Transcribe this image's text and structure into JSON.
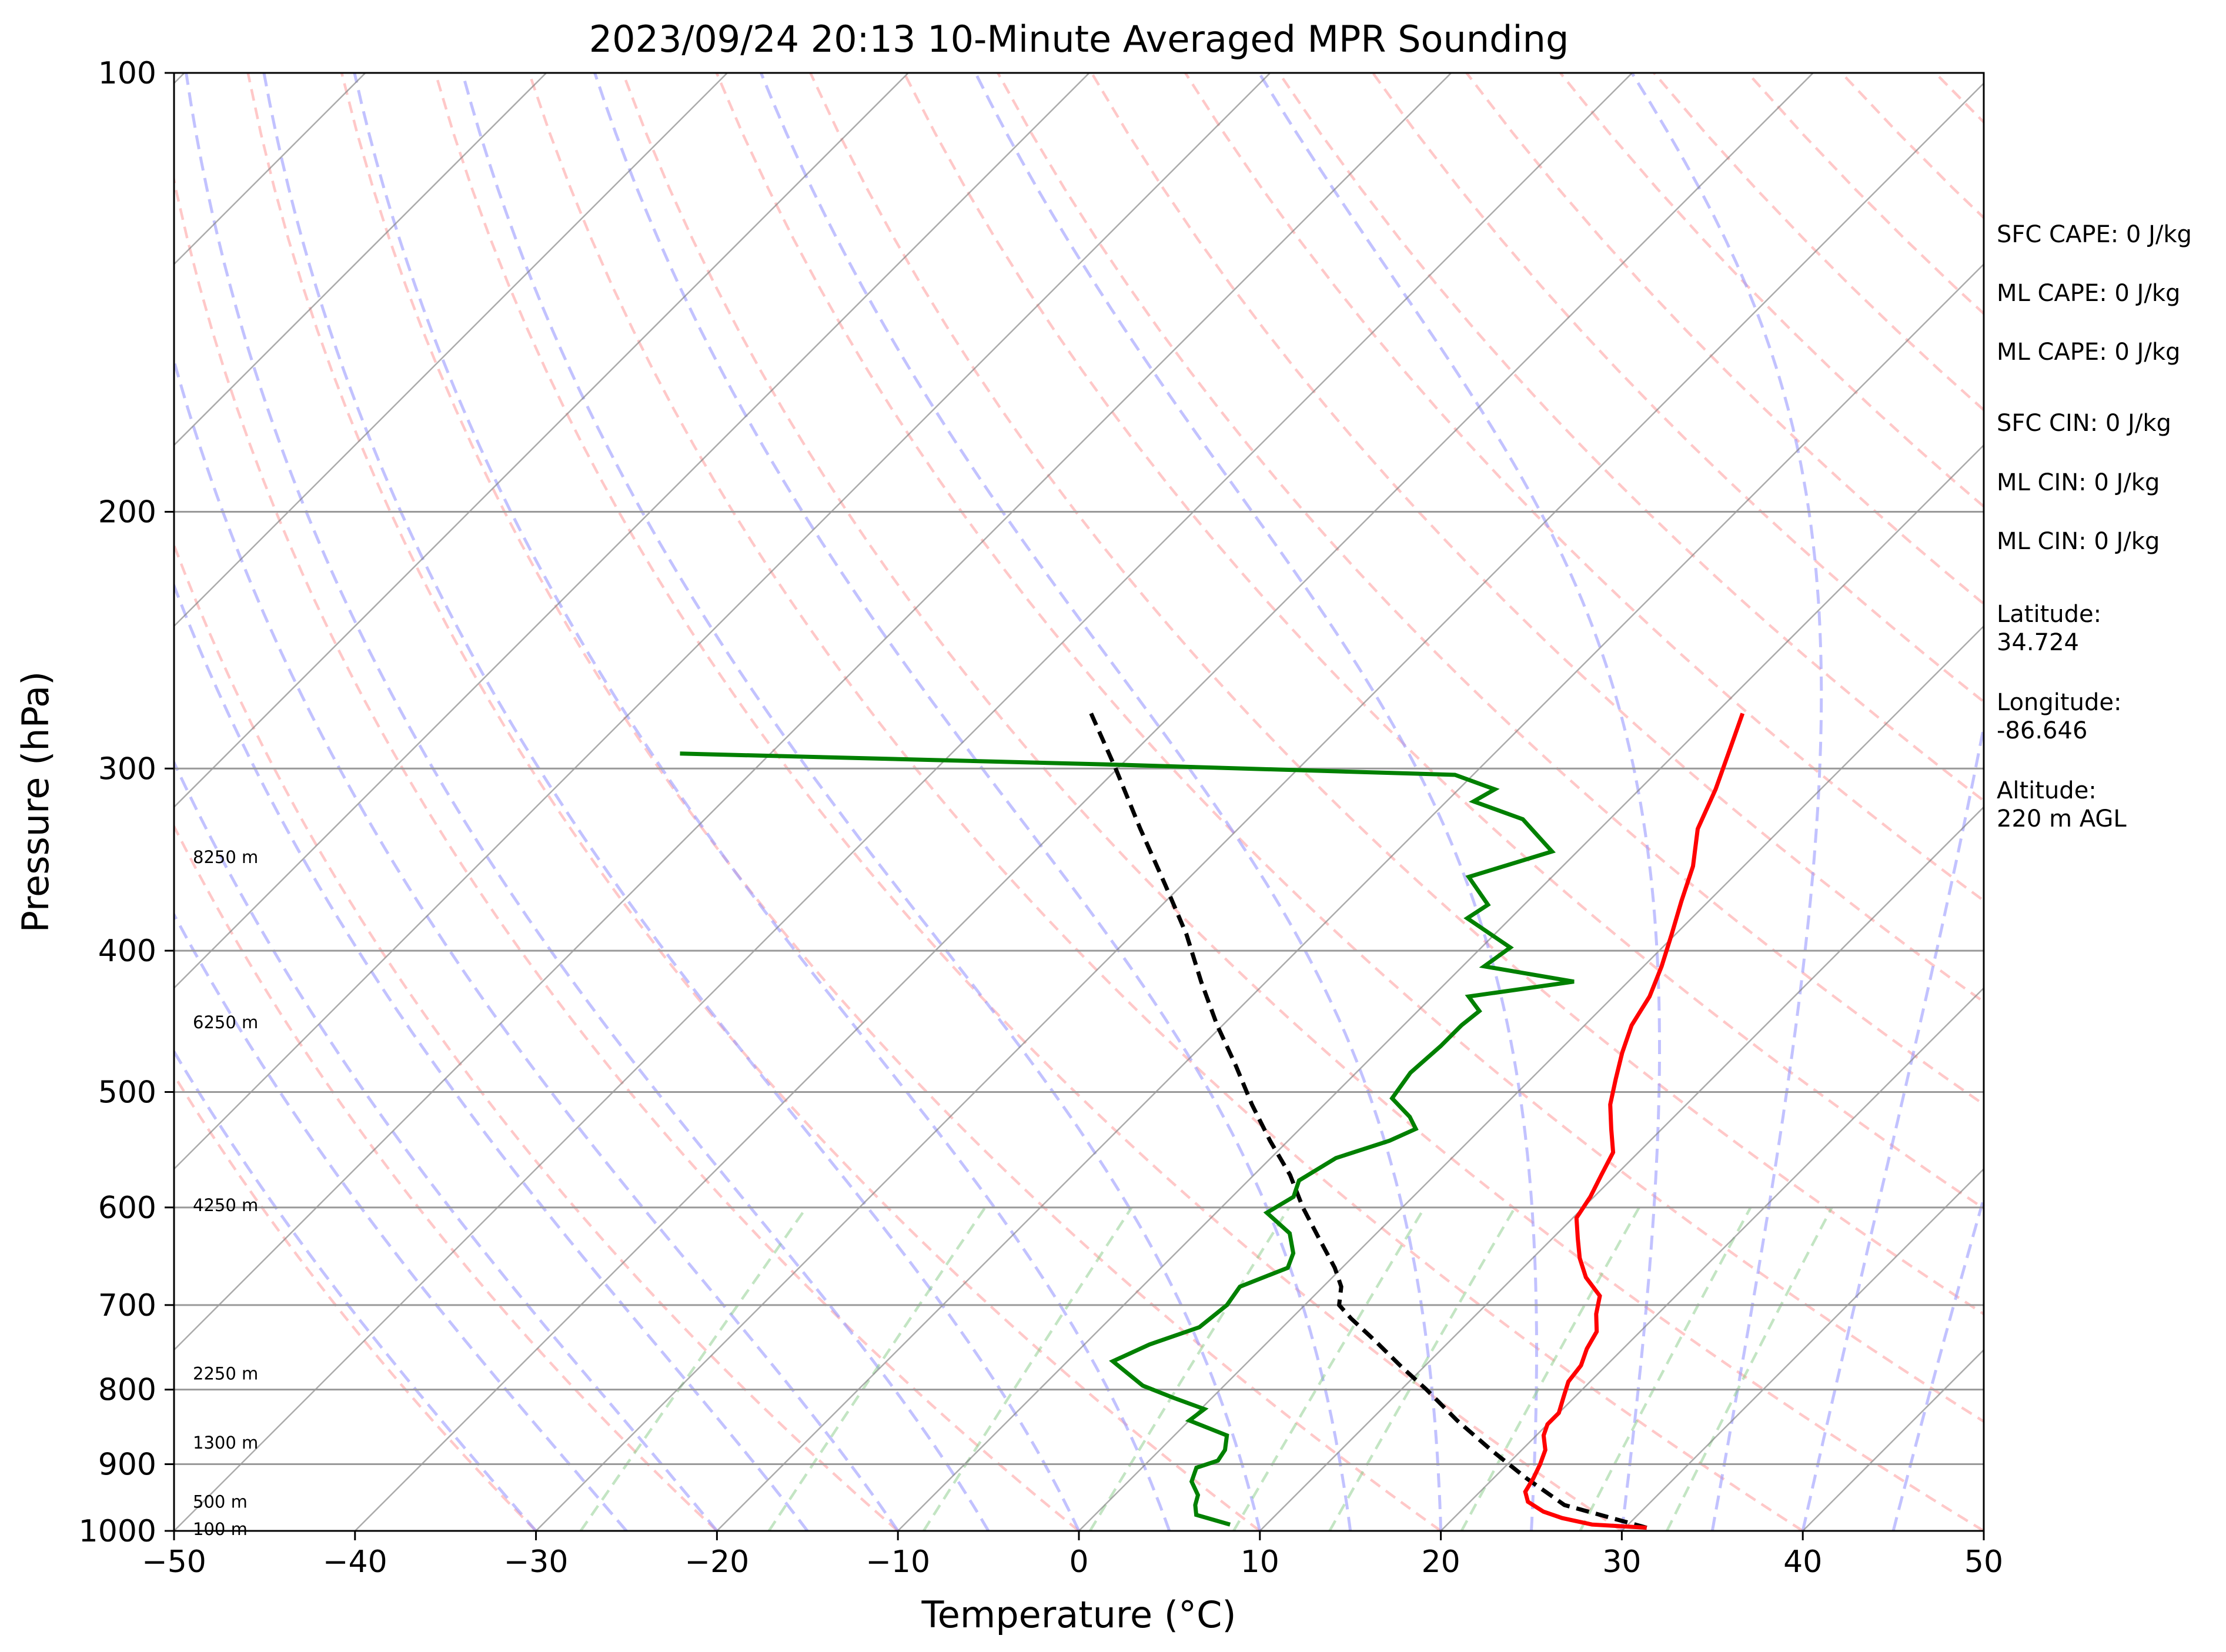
{
  "chart_data": {
    "type": "skew-t",
    "title": "2023/09/24 20:13 10-Minute Averaged MPR Sounding",
    "xlabel": "Temperature (°C)",
    "ylabel": "Pressure (hPa)",
    "xlim": [
      -50,
      50
    ],
    "ylim": [
      1000,
      100
    ],
    "yscale": "log",
    "skew": "45 degrees",
    "x_ticks": [
      "−50",
      "−40",
      "−30",
      "−20",
      "−10",
      "0",
      "10",
      "20",
      "30",
      "40",
      "50"
    ],
    "y_ticks": [
      "100",
      "200",
      "300",
      "400",
      "500",
      "600",
      "700",
      "800",
      "900",
      "1000"
    ],
    "grid": true,
    "height_labels": [
      {
        "p": 997,
        "text": "100 m"
      },
      {
        "p": 955,
        "text": "500 m"
      },
      {
        "p": 870,
        "text": "1300 m"
      },
      {
        "p": 780,
        "text": "2250 m"
      },
      {
        "p": 598,
        "text": "4250 m"
      },
      {
        "p": 448,
        "text": "6250 m"
      },
      {
        "p": 345,
        "text": "8250 m"
      }
    ],
    "info_panel": [
      {
        "lines": [
          "SFC CAPE: 0 J/kg"
        ]
      },
      {
        "lines": [
          "ML CAPE: 0 J/kg"
        ]
      },
      {
        "lines": [
          "ML CAPE: 0 J/kg"
        ]
      },
      {
        "lines": [
          "SFC CIN: 0 J/kg"
        ]
      },
      {
        "lines": [
          "ML CIN: 0 J/kg"
        ]
      },
      {
        "lines": [
          "ML CIN: 0 J/kg"
        ]
      },
      {
        "lines": [
          "Latitude:",
          "34.724"
        ]
      },
      {
        "lines": [
          "Longitude:",
          "-86.646"
        ]
      },
      {
        "lines": [
          "Altitude:",
          "220 m AGL"
        ]
      }
    ],
    "temperature": {
      "color": "#ff0000",
      "points": [
        [
          995,
          31.2
        ],
        [
          990,
          28.0
        ],
        [
          980,
          26.0
        ],
        [
          970,
          24.6
        ],
        [
          955,
          23.2
        ],
        [
          940,
          22.5
        ],
        [
          920,
          22.2
        ],
        [
          900,
          21.8
        ],
        [
          880,
          21.3
        ],
        [
          860,
          20.4
        ],
        [
          845,
          20.0
        ],
        [
          830,
          20.0
        ],
        [
          810,
          19.4
        ],
        [
          790,
          18.8
        ],
        [
          770,
          18.6
        ],
        [
          750,
          18.0
        ],
        [
          730,
          17.6
        ],
        [
          710,
          16.6
        ],
        [
          690,
          15.8
        ],
        [
          670,
          14.0
        ],
        [
          650,
          12.6
        ],
        [
          630,
          11.4
        ],
        [
          610,
          10.2
        ],
        [
          590,
          9.8
        ],
        [
          570,
          9.2
        ],
        [
          550,
          8.6
        ],
        [
          530,
          7.2
        ],
        [
          510,
          5.8
        ],
        [
          490,
          4.7
        ],
        [
          470,
          3.6
        ],
        [
          450,
          2.6
        ],
        [
          430,
          2.0
        ],
        [
          410,
          1.0
        ],
        [
          390,
          -0.2
        ],
        [
          370,
          -1.5
        ],
        [
          350,
          -2.8
        ],
        [
          330,
          -4.6
        ],
        [
          310,
          -5.8
        ],
        [
          290,
          -7.3
        ],
        [
          275,
          -8.5
        ]
      ]
    },
    "dewpoint": {
      "color": "#008000",
      "points": [
        [
          990,
          8.0
        ],
        [
          975,
          5.6
        ],
        [
          960,
          5.0
        ],
        [
          945,
          4.6
        ],
        [
          925,
          3.5
        ],
        [
          905,
          3.0
        ],
        [
          895,
          3.8
        ],
        [
          880,
          3.6
        ],
        [
          860,
          2.9
        ],
        [
          840,
          0.0
        ],
        [
          825,
          0.2
        ],
        [
          810,
          -2.2
        ],
        [
          795,
          -4.5
        ],
        [
          765,
          -7.5
        ],
        [
          745,
          -6.4
        ],
        [
          725,
          -4.6
        ],
        [
          700,
          -4.3
        ],
        [
          680,
          -4.6
        ],
        [
          660,
          -3.0
        ],
        [
          645,
          -3.5
        ],
        [
          625,
          -4.8
        ],
        [
          605,
          -7.2
        ],
        [
          590,
          -6.6
        ],
        [
          575,
          -7.2
        ],
        [
          555,
          -6.4
        ],
        [
          540,
          -4.4
        ],
        [
          530,
          -3.6
        ],
        [
          520,
          -4.6
        ],
        [
          505,
          -6.6
        ],
        [
          485,
          -7.0
        ],
        [
          465,
          -6.8
        ],
        [
          450,
          -6.8
        ],
        [
          440,
          -6.6
        ],
        [
          430,
          -8.0
        ],
        [
          420,
          -3.0
        ],
        [
          410,
          -8.8
        ],
        [
          398,
          -8.4
        ],
        [
          380,
          -12.4
        ],
        [
          372,
          -12.0
        ],
        [
          356,
          -14.6
        ],
        [
          342,
          -11.4
        ],
        [
          325,
          -14.8
        ],
        [
          316,
          -18.5
        ],
        [
          310,
          -18.0
        ],
        [
          303,
          -21.0
        ],
        [
          298,
          -41.0
        ],
        [
          293,
          -65.0
        ]
      ]
    },
    "parcel": {
      "color": "#000000",
      "points": [
        [
          995,
          31.2
        ],
        [
          960,
          25.4
        ],
        [
          920,
          21.8
        ],
        [
          880,
          18.3
        ],
        [
          840,
          14.8
        ],
        [
          800,
          11.4
        ],
        [
          770,
          8.6
        ],
        [
          740,
          5.8
        ],
        [
          715,
          3.3
        ],
        [
          700,
          1.9
        ],
        [
          680,
          1.0
        ],
        [
          660,
          -0.4
        ],
        [
          630,
          -2.9
        ],
        [
          600,
          -5.5
        ],
        [
          570,
          -8.0
        ],
        [
          540,
          -11.0
        ],
        [
          510,
          -14.0
        ],
        [
          480,
          -17.0
        ],
        [
          450,
          -20.3
        ],
        [
          420,
          -23.6
        ],
        [
          390,
          -27.0
        ],
        [
          360,
          -31.0
        ],
        [
          330,
          -35.4
        ],
        [
          300,
          -40.1
        ],
        [
          275,
          -44.5
        ]
      ]
    }
  }
}
